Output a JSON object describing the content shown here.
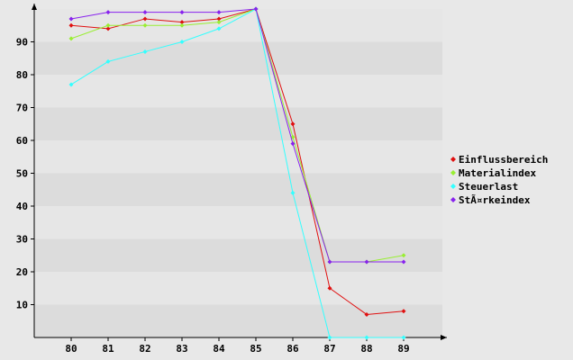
{
  "chart_data": {
    "type": "line",
    "title": "",
    "xlabel": "",
    "ylabel": "",
    "categories": [
      "80",
      "81",
      "82",
      "83",
      "84",
      "85",
      "86",
      "87",
      "88",
      "89"
    ],
    "ylim": [
      0,
      100
    ],
    "yticks": [
      10,
      20,
      30,
      40,
      50,
      60,
      70,
      80,
      90
    ],
    "grid": "horizontal alternating bands",
    "legend_position": "right",
    "series": [
      {
        "name": "Einflussbereich",
        "color": "#e01010",
        "values": [
          95,
          94,
          97,
          96,
          97,
          100,
          65,
          15,
          7,
          8
        ]
      },
      {
        "name": "Materialindex",
        "color": "#99ee33",
        "values": [
          91,
          95,
          95,
          95,
          96,
          100,
          61,
          23,
          23,
          25
        ]
      },
      {
        "name": "Steuerlast",
        "color": "#33ffff",
        "values": [
          77,
          84,
          87,
          90,
          94,
          100,
          44,
          0,
          0,
          0
        ]
      },
      {
        "name": "StÃ¤rkeindex",
        "color": "#8822ee",
        "values": [
          97,
          99,
          99,
          99,
          99,
          100,
          59,
          23,
          23,
          23
        ]
      }
    ]
  }
}
